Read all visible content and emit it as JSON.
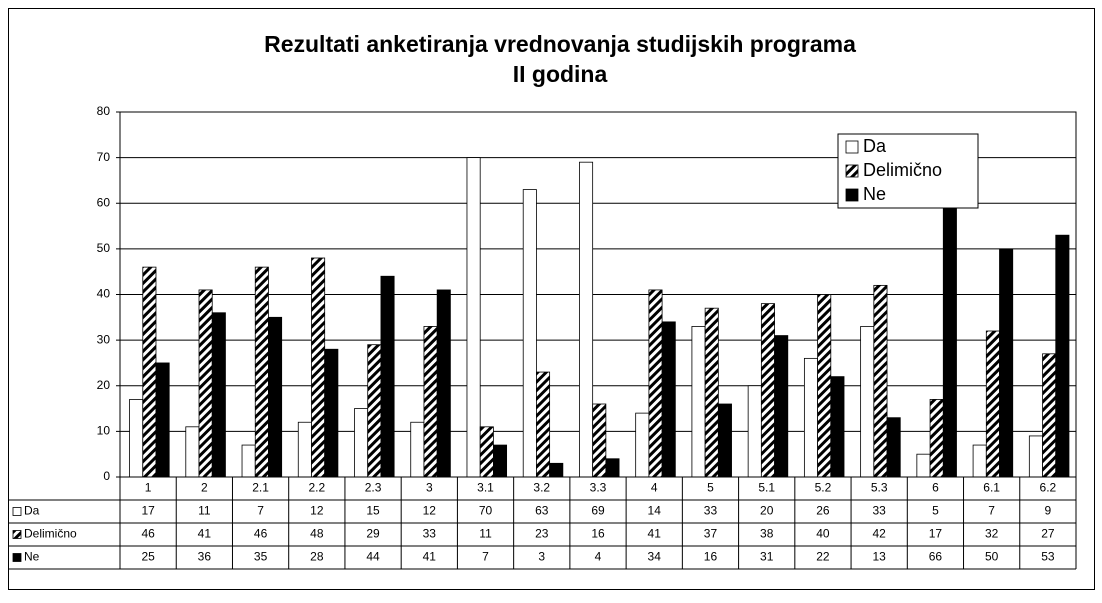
{
  "chart_data": {
    "type": "bar",
    "title": "Rezultati anketiranja vrednovanja studijskih programa",
    "subtitle": "II godina",
    "categories": [
      "1",
      "2",
      "2.1",
      "2.2",
      "2.3",
      "3",
      "3.1",
      "3.2",
      "3.3",
      "4",
      "5",
      "5.1",
      "5.2",
      "5.3",
      "6",
      "6.1",
      "6.2"
    ],
    "series": [
      {
        "name": "Da",
        "color": "#ffffff",
        "values": [
          17,
          11,
          7,
          12,
          15,
          12,
          70,
          63,
          69,
          14,
          33,
          20,
          26,
          33,
          5,
          7,
          9
        ]
      },
      {
        "name": "Delimično",
        "color": "hatch",
        "values": [
          46,
          41,
          46,
          48,
          29,
          33,
          11,
          23,
          16,
          41,
          37,
          38,
          40,
          42,
          17,
          32,
          27
        ]
      },
      {
        "name": "Ne",
        "color": "#000000",
        "values": [
          25,
          36,
          35,
          28,
          44,
          41,
          7,
          3,
          4,
          34,
          16,
          31,
          22,
          13,
          66,
          50,
          53
        ]
      }
    ],
    "ylim": [
      0,
      80
    ],
    "yticks": [
      0,
      10,
      20,
      30,
      40,
      50,
      60,
      70,
      80
    ],
    "grid": true,
    "legend": "top-right"
  }
}
